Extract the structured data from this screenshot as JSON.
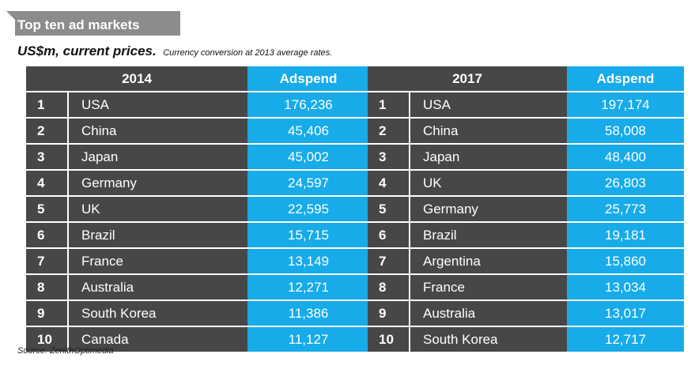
{
  "chart_data": {
    "type": "table",
    "title": "Top ten ad markets",
    "subtitle": "US$m, current prices.",
    "note": "Currency conversion at 2013 average rates.",
    "source": "Source: ZenithOptimedia",
    "value_label": "Adspend",
    "tables": [
      {
        "year": "2014",
        "rows": [
          {
            "rank": "1",
            "country": "USA",
            "adspend": "176,236"
          },
          {
            "rank": "2",
            "country": "China",
            "adspend": "45,406"
          },
          {
            "rank": "3",
            "country": "Japan",
            "adspend": "45,002"
          },
          {
            "rank": "4",
            "country": "Germany",
            "adspend": "24,597"
          },
          {
            "rank": "5",
            "country": "UK",
            "adspend": "22,595"
          },
          {
            "rank": "6",
            "country": "Brazil",
            "adspend": "15,715"
          },
          {
            "rank": "7",
            "country": "France",
            "adspend": "13,149"
          },
          {
            "rank": "8",
            "country": "Australia",
            "adspend": "12,271"
          },
          {
            "rank": "9",
            "country": "South Korea",
            "adspend": "11,386"
          },
          {
            "rank": "10",
            "country": "Canada",
            "adspend": "11,127"
          }
        ]
      },
      {
        "year": "2017",
        "rows": [
          {
            "rank": "1",
            "country": "USA",
            "adspend": "197,174"
          },
          {
            "rank": "2",
            "country": "China",
            "adspend": "58,008"
          },
          {
            "rank": "3",
            "country": "Japan",
            "adspend": "48,400"
          },
          {
            "rank": "4",
            "country": "UK",
            "adspend": "26,803"
          },
          {
            "rank": "5",
            "country": "Germany",
            "adspend": "25,773"
          },
          {
            "rank": "6",
            "country": "Brazil",
            "adspend": "19,181"
          },
          {
            "rank": "7",
            "country": "Argentina",
            "adspend": "15,860"
          },
          {
            "rank": "8",
            "country": "France",
            "adspend": "13,034"
          },
          {
            "rank": "9",
            "country": "Australia",
            "adspend": "13,017"
          },
          {
            "rank": "10",
            "country": "South Korea",
            "adspend": "12,717"
          }
        ]
      }
    ]
  },
  "colors": {
    "dark_cell": "#474747",
    "value_cell": "#17abe9",
    "title_tab": "#8c8c8c",
    "text_light": "#ffffff"
  }
}
